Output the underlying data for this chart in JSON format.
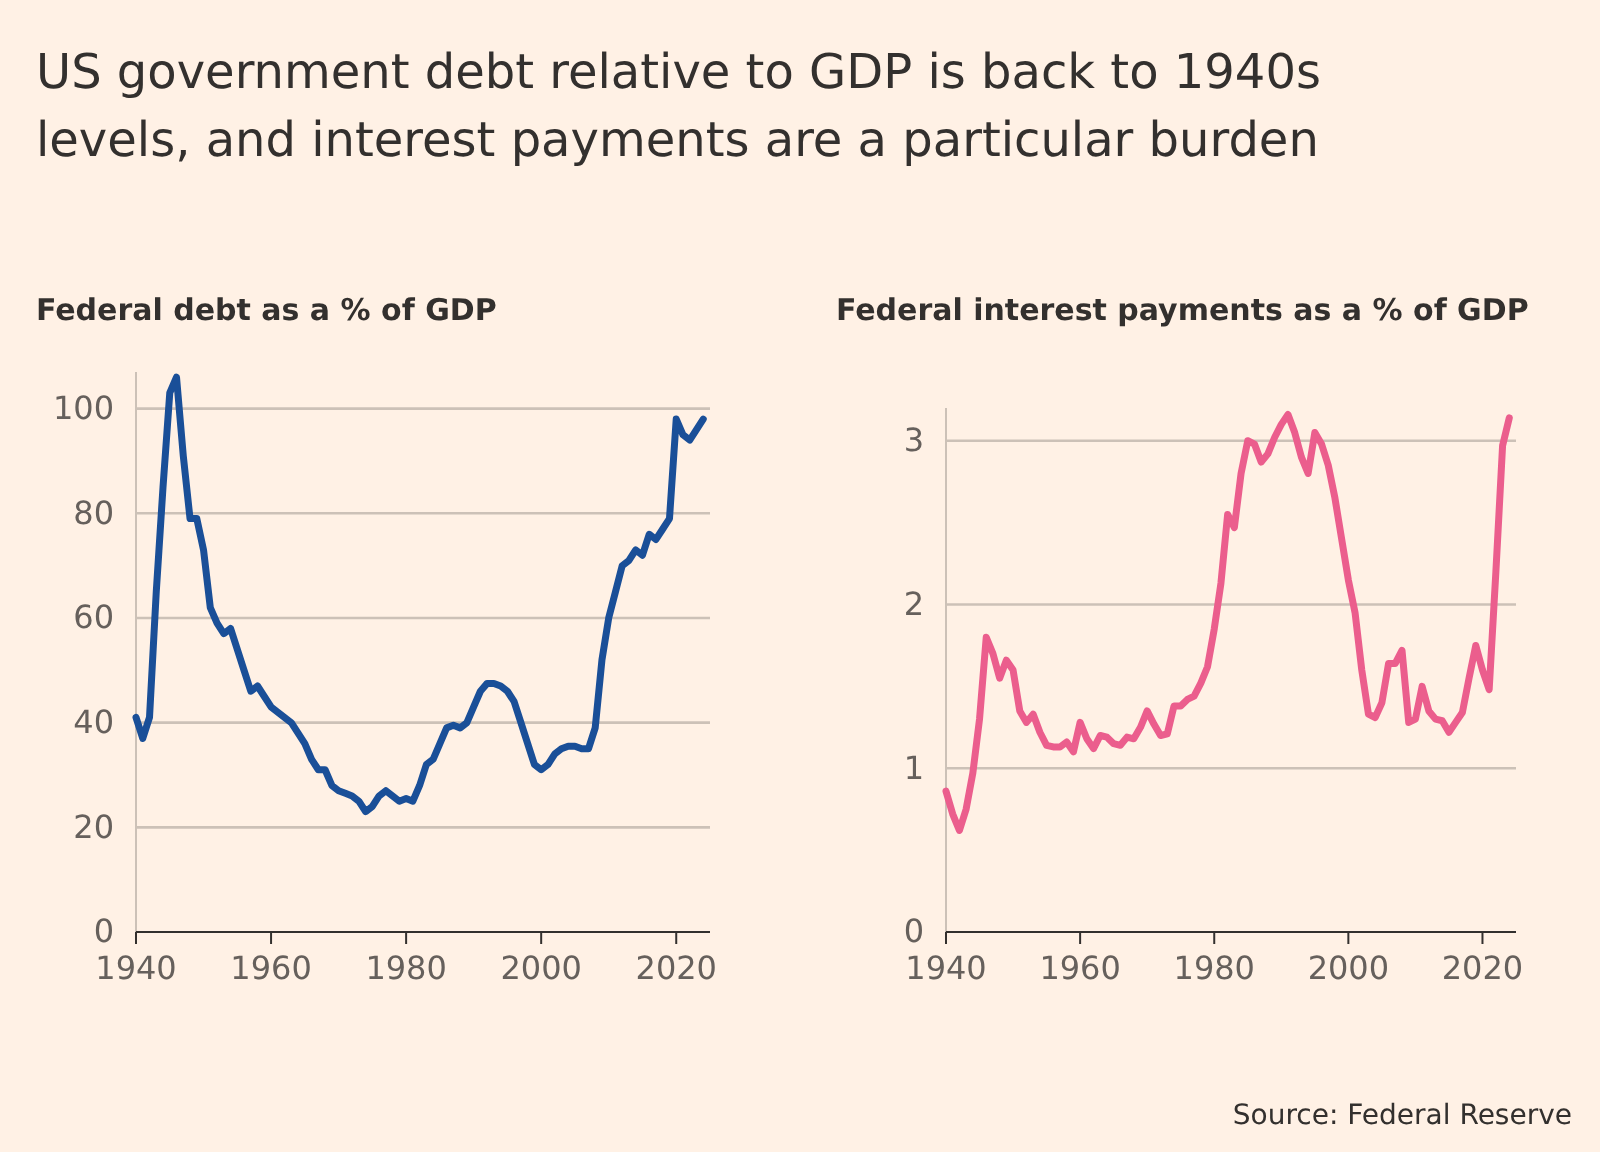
{
  "chart_data": [
    {
      "type": "line",
      "title": "US government debt relative to GDP is back to 1940s levels, and interest payments are a particular burden",
      "subtitle": "Federal debt as a % of GDP",
      "x": [
        1940,
        1941,
        1942,
        1943,
        1944,
        1945,
        1946,
        1947,
        1948,
        1949,
        1950,
        1951,
        1952,
        1953,
        1954,
        1955,
        1956,
        1957,
        1958,
        1959,
        1960,
        1961,
        1962,
        1963,
        1964,
        1965,
        1966,
        1967,
        1968,
        1969,
        1970,
        1971,
        1972,
        1973,
        1974,
        1975,
        1976,
        1977,
        1978,
        1979,
        1980,
        1981,
        1982,
        1983,
        1984,
        1985,
        1986,
        1987,
        1988,
        1989,
        1990,
        1991,
        1992,
        1993,
        1994,
        1995,
        1996,
        1997,
        1998,
        1999,
        2000,
        2001,
        2002,
        2003,
        2004,
        2005,
        2006,
        2007,
        2008,
        2009,
        2010,
        2011,
        2012,
        2013,
        2014,
        2015,
        2016,
        2017,
        2018,
        2019,
        2020,
        2021,
        2022,
        2023,
        2024
      ],
      "series": [
        {
          "color": "#1a4f98",
          "values": [
            41,
            37,
            41,
            65,
            85,
            103,
            106,
            91,
            79,
            79,
            73,
            62,
            59,
            57,
            58,
            54,
            50,
            46,
            47,
            45,
            43,
            42,
            41,
            40,
            38,
            36,
            33,
            31,
            31,
            28,
            27,
            26.5,
            26,
            25,
            23,
            24,
            26,
            27,
            26,
            25,
            25.5,
            25,
            28,
            32,
            33,
            36,
            39,
            39.5,
            39,
            40,
            43,
            46,
            47.5,
            47.5,
            47,
            46,
            44,
            40,
            36,
            32,
            31,
            32,
            34,
            35,
            35.5,
            35.5,
            35,
            35,
            39,
            52,
            60,
            65,
            70,
            71,
            73,
            72,
            76,
            75,
            77,
            79,
            98,
            95,
            94,
            96,
            98
          ]
        }
      ],
      "xlim": [
        1940,
        2025
      ],
      "ylim": [
        0,
        107
      ],
      "xticks": [
        1940,
        1960,
        1980,
        2000,
        2020
      ],
      "yticks": [
        0,
        20,
        40,
        60,
        80,
        100
      ],
      "grid": "y",
      "line_style": "solid"
    },
    {
      "type": "line",
      "subtitle": "Federal interest payments as a % of GDP",
      "annotations": [
        "Source: Federal Reserve"
      ],
      "x": [
        1940,
        1941,
        1942,
        1943,
        1944,
        1945,
        1946,
        1947,
        1948,
        1949,
        1950,
        1951,
        1952,
        1953,
        1954,
        1955,
        1956,
        1957,
        1958,
        1959,
        1960,
        1961,
        1962,
        1963,
        1964,
        1965,
        1966,
        1967,
        1968,
        1969,
        1970,
        1971,
        1972,
        1973,
        1974,
        1975,
        1976,
        1977,
        1978,
        1979,
        1980,
        1981,
        1982,
        1983,
        1984,
        1985,
        1986,
        1987,
        1988,
        1989,
        1990,
        1991,
        1992,
        1993,
        1994,
        1995,
        1996,
        1997,
        1998,
        1999,
        2000,
        2001,
        2002,
        2003,
        2004,
        2005,
        2006,
        2007,
        2008,
        2009,
        2010,
        2011,
        2012,
        2013,
        2014,
        2015,
        2016,
        2017,
        2018,
        2019,
        2020,
        2021,
        2022,
        2023,
        2024
      ],
      "series": [
        {
          "color": "#eb5e8d",
          "values": [
            0.86,
            0.72,
            0.62,
            0.75,
            0.97,
            1.3,
            1.8,
            1.7,
            1.55,
            1.66,
            1.6,
            1.35,
            1.28,
            1.33,
            1.22,
            1.14,
            1.13,
            1.13,
            1.16,
            1.1,
            1.28,
            1.18,
            1.12,
            1.2,
            1.19,
            1.15,
            1.14,
            1.19,
            1.18,
            1.25,
            1.35,
            1.27,
            1.2,
            1.21,
            1.38,
            1.38,
            1.42,
            1.44,
            1.52,
            1.62,
            1.85,
            2.13,
            2.55,
            2.47,
            2.8,
            3.0,
            2.98,
            2.87,
            2.92,
            3.02,
            3.1,
            3.16,
            3.05,
            2.9,
            2.8,
            3.05,
            2.98,
            2.85,
            2.65,
            2.4,
            2.15,
            1.95,
            1.6,
            1.33,
            1.31,
            1.4,
            1.64,
            1.64,
            1.72,
            1.28,
            1.3,
            1.5,
            1.35,
            1.3,
            1.29,
            1.22,
            1.28,
            1.34,
            1.55,
            1.75,
            1.6,
            1.48,
            2.2,
            2.97,
            3.14
          ]
        }
      ],
      "xlim": [
        1940,
        2025
      ],
      "ylim": [
        0,
        3.2
      ],
      "xticks": [
        1940,
        1960,
        1980,
        2000,
        2020
      ],
      "yticks": [
        0,
        1,
        2,
        3
      ],
      "grid": "y",
      "line_style": "solid"
    }
  ]
}
